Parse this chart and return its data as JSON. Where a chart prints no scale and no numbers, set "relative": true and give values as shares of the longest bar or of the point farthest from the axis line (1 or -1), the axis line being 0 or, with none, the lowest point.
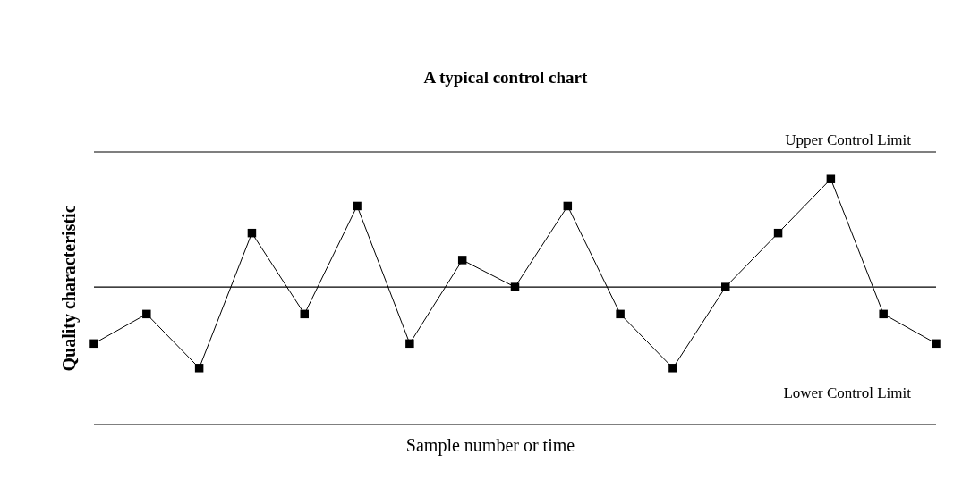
{
  "chart_data": {
    "type": "line",
    "title": "A typical control chart",
    "xlabel": "Sample number or time",
    "ylabel": "Quality characteristic",
    "relative": true,
    "marker": "square",
    "categories": [
      null,
      null,
      null,
      null,
      null,
      null,
      null,
      null,
      null,
      null,
      null,
      null,
      null,
      null,
      null,
      null,
      null
    ],
    "series": [
      {
        "color": "#000000",
        "values": [
          0.33,
          0.45,
          0.23,
          0.78,
          0.45,
          0.89,
          0.33,
          0.67,
          0.56,
          0.89,
          0.45,
          0.23,
          0.56,
          0.78,
          1,
          0.45,
          0.33
        ]
      }
    ],
    "ref_lines": [
      {
        "axis": "y",
        "value": 1.11,
        "label": "Upper Control Limit",
        "color": "#000000"
      },
      {
        "axis": "y",
        "value": 0.56,
        "label": null,
        "color": "#000000"
      },
      {
        "axis": "y",
        "value": 0,
        "label": "Lower Control Limit",
        "color": "#000000"
      }
    ]
  }
}
